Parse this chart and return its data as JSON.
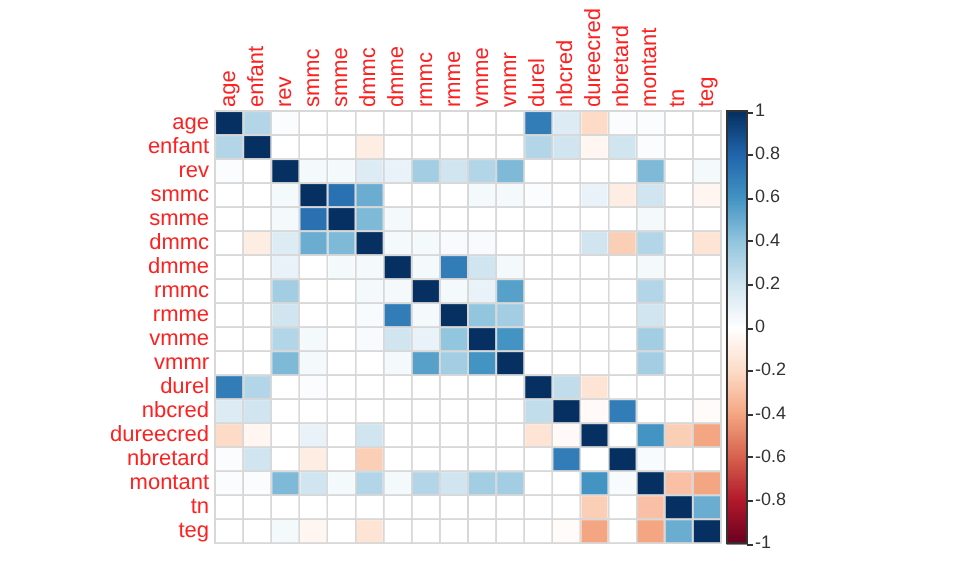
{
  "chart_data": {
    "type": "heatmap",
    "categories": [
      "age",
      "enfant",
      "rev",
      "smmc",
      "smme",
      "dmmc",
      "dmme",
      "rmmc",
      "rmme",
      "vmme",
      "vmmr",
      "durel",
      "nbcred",
      "dureecred",
      "nbretard",
      "montant",
      "tn",
      "teg"
    ],
    "y_categories": [
      "age",
      "enfant",
      "rev",
      "smmc",
      "smme",
      "dmmc",
      "dmme",
      "rmmc",
      "rmme",
      "vmme",
      "vmmr",
      "durel",
      "nbcred",
      "dureecred",
      "nbretard",
      "montant",
      "tn",
      "teg"
    ],
    "cells": [
      [
        1,
        0.3,
        0.02,
        0,
        0,
        0,
        0,
        0,
        0,
        0,
        0,
        0.7,
        0.15,
        -0.2,
        0.02,
        0.02,
        0,
        0
      ],
      [
        0.3,
        1,
        0,
        0,
        0,
        -0.1,
        0,
        0,
        0,
        0,
        0,
        0.3,
        0.2,
        -0.05,
        0.2,
        0.02,
        0,
        0
      ],
      [
        0.02,
        0,
        1,
        0.05,
        0.05,
        0.15,
        0.1,
        0.35,
        0.2,
        0.3,
        0.45,
        0,
        0,
        0,
        0,
        0.45,
        0,
        0.05
      ],
      [
        0,
        0,
        0.05,
        1,
        0.75,
        0.5,
        0,
        0,
        0,
        0.05,
        0.05,
        0.02,
        0,
        0.1,
        -0.1,
        0.2,
        0,
        -0.05
      ],
      [
        0,
        0,
        0.05,
        0.75,
        1,
        0.45,
        0.05,
        0,
        0,
        0,
        0,
        0,
        0,
        0,
        0,
        0.05,
        0,
        0
      ],
      [
        0,
        -0.1,
        0.15,
        0.5,
        0.45,
        1,
        0.05,
        0.05,
        0.03,
        0.03,
        0,
        0,
        0,
        0.2,
        -0.25,
        0.3,
        0,
        -0.15
      ],
      [
        0,
        0,
        0.1,
        0,
        0.05,
        0.05,
        1,
        0.05,
        0.7,
        0.2,
        0.05,
        0,
        0,
        0,
        0,
        0.05,
        0,
        0
      ],
      [
        0,
        0,
        0.35,
        0,
        0,
        0.05,
        0.05,
        1,
        0.05,
        0.1,
        0.55,
        0,
        0,
        0,
        0,
        0.3,
        0,
        0
      ],
      [
        0,
        0,
        0.2,
        0,
        0,
        0.03,
        0.7,
        0.05,
        1,
        0.4,
        0.35,
        0,
        0,
        0,
        0,
        0.2,
        0,
        0
      ],
      [
        0,
        0,
        0.3,
        0.05,
        0,
        0.03,
        0.2,
        0.1,
        0.4,
        1,
        0.6,
        0,
        0,
        0,
        0,
        0.35,
        0,
        0
      ],
      [
        0,
        0,
        0.45,
        0.05,
        0,
        0,
        0.05,
        0.55,
        0.35,
        0.6,
        1,
        0,
        0,
        0,
        0,
        0.35,
        0,
        0
      ],
      [
        0.7,
        0.3,
        0,
        0.02,
        0,
        0,
        0,
        0,
        0,
        0,
        0,
        1,
        0.25,
        -0.15,
        0,
        0,
        0,
        0
      ],
      [
        0.15,
        0.2,
        0,
        0,
        0,
        0,
        0,
        0,
        0,
        0,
        0,
        0.25,
        1,
        -0.03,
        0.7,
        0,
        0,
        -0.02
      ],
      [
        -0.2,
        -0.05,
        0,
        0.1,
        0,
        0.2,
        0,
        0,
        0,
        0,
        0,
        -0.15,
        -0.03,
        1,
        0,
        0.6,
        -0.25,
        -0.4
      ],
      [
        0.02,
        0.2,
        0,
        -0.1,
        0,
        -0.25,
        0,
        0,
        0,
        0,
        0,
        0,
        0.7,
        0,
        1,
        0.03,
        0,
        0
      ],
      [
        0.02,
        0.02,
        0.45,
        0.2,
        0.05,
        0.3,
        0.05,
        0.3,
        0.2,
        0.35,
        0.35,
        0,
        0,
        0.6,
        0.03,
        1,
        -0.3,
        -0.4
      ],
      [
        0,
        0,
        0,
        0,
        0,
        0,
        0,
        0,
        0,
        0,
        0,
        0,
        0,
        -0.25,
        0,
        -0.3,
        1,
        0.5
      ],
      [
        0,
        0,
        0.05,
        -0.05,
        0,
        -0.15,
        0,
        0,
        0,
        0,
        0,
        0,
        -0.02,
        -0.4,
        0,
        -0.4,
        0.5,
        1
      ]
    ],
    "clim": [
      -1,
      1
    ],
    "cticks": [
      -1,
      -0.8,
      -0.6,
      -0.4,
      -0.2,
      0,
      0.2,
      0.4,
      0.6,
      0.8,
      1
    ],
    "grid": true,
    "legend": false
  }
}
